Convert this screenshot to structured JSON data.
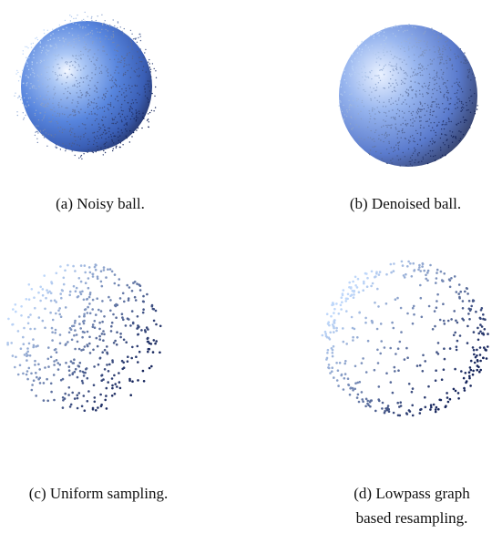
{
  "figure": {
    "panels": [
      {
        "caption": [
          "(a) Noisy ball."
        ]
      },
      {
        "caption": [
          "(b) Denoised ball."
        ]
      },
      {
        "caption": [
          "(c) Uniform sampling."
        ]
      },
      {
        "caption": [
          "(d) Lowpass graph",
          "based resampling."
        ]
      }
    ]
  }
}
